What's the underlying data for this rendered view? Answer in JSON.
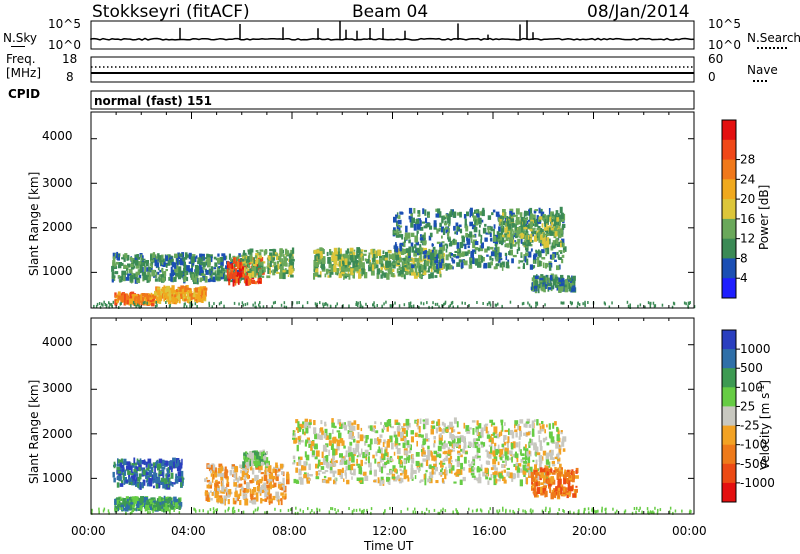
{
  "header": {
    "station": "Stokkseyri (fitACF)",
    "beam": "Beam 04",
    "date": "08/Jan/2014"
  },
  "nsky_panel": {
    "left_label": "N.Sky",
    "left_ticks": [
      "10^5",
      "10^0"
    ],
    "right_label": "N.Search",
    "right_ticks": [
      "10^5",
      "10^0"
    ]
  },
  "freq_panel": {
    "left_label_1": "Freq.",
    "left_label_2": "[MHz]",
    "left_ticks": [
      "18",
      "8"
    ],
    "right_label": "Nave",
    "right_ticks": [
      "60",
      "0"
    ]
  },
  "cpid": {
    "label": "CPID",
    "value": "normal (fast) 151"
  },
  "chart_data": [
    {
      "type": "heatmap",
      "name": "power",
      "ylabel": "Slant Range [km]",
      "ylim": [
        200,
        4600
      ],
      "yticks": [
        1000,
        2000,
        3000,
        4000
      ],
      "xlim": [
        0,
        24
      ],
      "colorbar": {
        "label": "Power [dB]",
        "ticks": [
          "4",
          "8",
          "12",
          "16",
          "20",
          "24",
          "28"
        ],
        "colors": [
          "#1f1fff",
          "#1b4fb4",
          "#3b8a55",
          "#6aa85a",
          "#ddc63a",
          "#f0a91e",
          "#f0781a",
          "#f04818",
          "#e41010"
        ]
      },
      "blobs": [
        {
          "t0": 0.8,
          "t1": 6.2,
          "r0": 800,
          "r1": 1400,
          "c": 2
        },
        {
          "t0": 0.9,
          "t1": 2.5,
          "r0": 300,
          "r1": 500,
          "c": 6
        },
        {
          "t0": 2.5,
          "t1": 4.5,
          "r0": 350,
          "r1": 650,
          "c": 5
        },
        {
          "t0": 5.4,
          "t1": 6.8,
          "r0": 750,
          "r1": 1300,
          "c": 7
        },
        {
          "t0": 6.0,
          "t1": 8.0,
          "r0": 900,
          "r1": 1500,
          "c": 3
        },
        {
          "t0": 8.8,
          "t1": 14.0,
          "r0": 900,
          "r1": 1500,
          "c": 3
        },
        {
          "t0": 12.0,
          "t1": 18.8,
          "r0": 1100,
          "r1": 2400,
          "c": 2
        },
        {
          "t0": 16.2,
          "t1": 18.8,
          "r0": 1600,
          "r1": 2300,
          "c": 3
        },
        {
          "t0": 17.5,
          "t1": 19.2,
          "r0": 600,
          "r1": 900,
          "c": 2
        }
      ]
    },
    {
      "type": "heatmap",
      "name": "velocity",
      "ylabel": "Slant Range [km]",
      "xlabel": "Time UT",
      "ylim": [
        200,
        4600
      ],
      "yticks": [
        1000,
        2000,
        3000,
        4000
      ],
      "xlim": [
        0,
        24
      ],
      "xticks": [
        "00:00",
        "04:00",
        "08:00",
        "12:00",
        "16:00",
        "20:00",
        "00:00"
      ],
      "colorbar": {
        "label": "Velocity [m s-1]",
        "ticks": [
          "1000",
          "500",
          "100",
          "25",
          "-25",
          "-100",
          "-500",
          "-1000"
        ],
        "colors": [
          "#2a3fbf",
          "#2f6fa8",
          "#3d9a52",
          "#66cc44",
          "#c8c8c0",
          "#f2a224",
          "#ee7a1a",
          "#ec4a14",
          "#e41010"
        ]
      },
      "blobs": [
        {
          "t0": 0.8,
          "t1": 3.6,
          "r0": 800,
          "r1": 1400,
          "c": 1
        },
        {
          "t0": 0.9,
          "t1": 3.5,
          "r0": 300,
          "r1": 550,
          "c": 2
        },
        {
          "t0": 4.5,
          "t1": 7.8,
          "r0": 450,
          "r1": 1300,
          "c": 5
        },
        {
          "t0": 6.0,
          "t1": 7.0,
          "r0": 1300,
          "r1": 1600,
          "c": 3
        },
        {
          "t0": 8.0,
          "t1": 18.8,
          "r0": 900,
          "r1": 2300,
          "c": 4
        },
        {
          "t0": 17.5,
          "t1": 19.3,
          "r0": 600,
          "r1": 1200,
          "c": 6
        }
      ]
    }
  ]
}
